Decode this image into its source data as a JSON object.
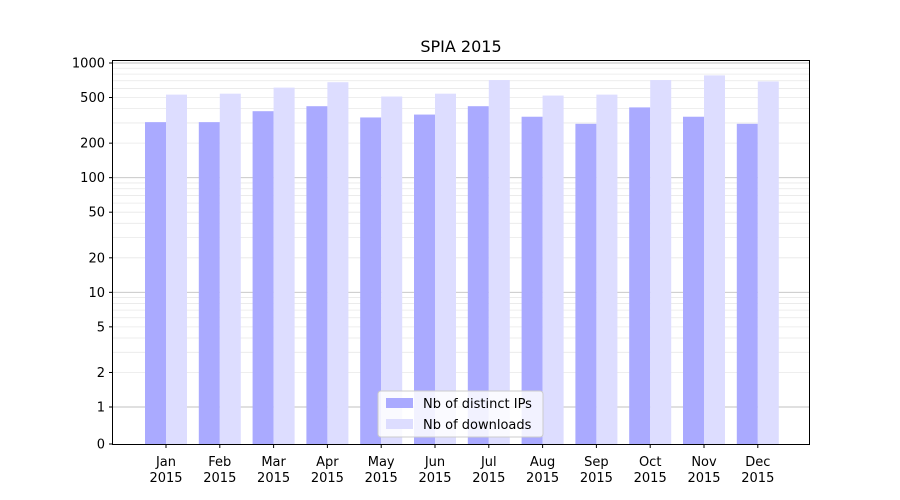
{
  "chart_data": {
    "type": "bar",
    "title": "SPIA 2015",
    "xlabel": "",
    "ylabel": "",
    "yscale": "symlog",
    "ylim": [
      0,
      1000
    ],
    "yticks": [
      {
        "value": 0,
        "label": "0"
      },
      {
        "value": 1,
        "label": "1"
      },
      {
        "value": 2,
        "label": "2"
      },
      {
        "value": 5,
        "label": "5"
      },
      {
        "value": 10,
        "label": "10"
      },
      {
        "value": 20,
        "label": "20"
      },
      {
        "value": 50,
        "label": "50"
      },
      {
        "value": 100,
        "label": "100"
      },
      {
        "value": 200,
        "label": "200"
      },
      {
        "value": 500,
        "label": "500"
      },
      {
        "value": 1000,
        "label": "1000"
      }
    ],
    "major_gridlines": [
      1,
      10,
      100,
      1000
    ],
    "categories": [
      {
        "month": "Jan",
        "year": "2015"
      },
      {
        "month": "Feb",
        "year": "2015"
      },
      {
        "month": "Mar",
        "year": "2015"
      },
      {
        "month": "Apr",
        "year": "2015"
      },
      {
        "month": "May",
        "year": "2015"
      },
      {
        "month": "Jun",
        "year": "2015"
      },
      {
        "month": "Jul",
        "year": "2015"
      },
      {
        "month": "Aug",
        "year": "2015"
      },
      {
        "month": "Sep",
        "year": "2015"
      },
      {
        "month": "Oct",
        "year": "2015"
      },
      {
        "month": "Nov",
        "year": "2015"
      },
      {
        "month": "Dec",
        "year": "2015"
      }
    ],
    "series": [
      {
        "name": "Nb of distinct IPs",
        "color": "#aaaaff",
        "values": [
          305,
          305,
          380,
          420,
          335,
          355,
          420,
          340,
          295,
          410,
          340,
          295
        ]
      },
      {
        "name": "Nb of downloads",
        "color": "#ddddff",
        "values": [
          530,
          540,
          610,
          680,
          510,
          540,
          710,
          520,
          530,
          710,
          780,
          690
        ]
      }
    ],
    "legend_position": "lower-center"
  }
}
